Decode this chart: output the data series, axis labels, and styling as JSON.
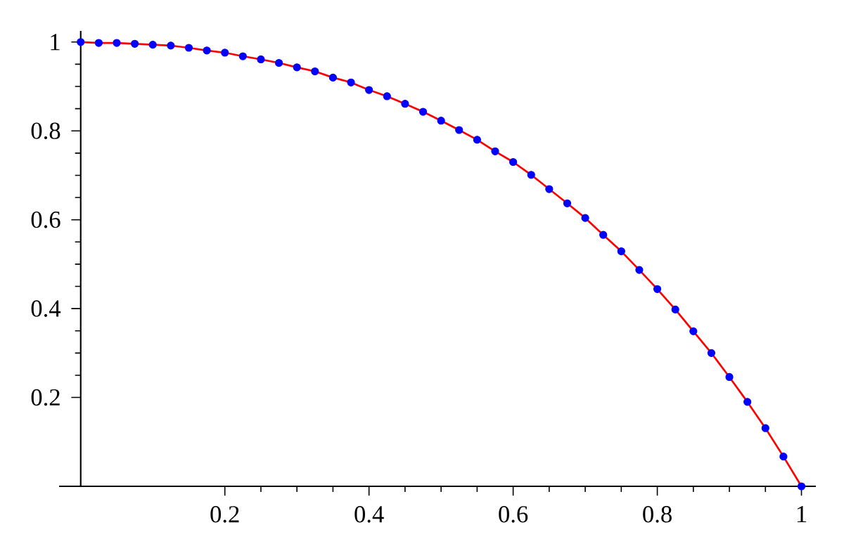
{
  "chart_data": {
    "type": "line",
    "x": [
      0,
      0.025,
      0.05,
      0.075,
      0.1,
      0.125,
      0.15,
      0.175,
      0.2,
      0.225,
      0.25,
      0.275,
      0.3,
      0.325,
      0.35,
      0.375,
      0.4,
      0.425,
      0.45,
      0.475,
      0.5,
      0.525,
      0.55,
      0.575,
      0.6,
      0.625,
      0.65,
      0.675,
      0.7,
      0.725,
      0.75,
      0.775,
      0.8,
      0.825,
      0.85,
      0.875,
      0.9,
      0.925,
      0.95,
      0.975,
      1
    ],
    "series": [
      {
        "color": "#ff0000",
        "marker": "none",
        "line_style": "solid",
        "values": [
          1,
          0.998,
          0.998,
          0.996,
          0.994,
          0.992,
          0.987,
          0.981,
          0.976,
          0.968,
          0.961,
          0.953,
          0.943,
          0.934,
          0.92,
          0.909,
          0.892,
          0.878,
          0.861,
          0.843,
          0.823,
          0.802,
          0.78,
          0.754,
          0.73,
          0.701,
          0.669,
          0.637,
          0.604,
          0.566,
          0.529,
          0.487,
          0.444,
          0.398,
          0.349,
          0.3,
          0.246,
          0.19,
          0.131,
          0.067,
          0
        ]
      },
      {
        "type": "scatter",
        "color": "#0000ff",
        "marker": "circle",
        "values": [
          1,
          0.998,
          0.998,
          0.996,
          0.994,
          0.992,
          0.987,
          0.981,
          0.976,
          0.968,
          0.961,
          0.953,
          0.943,
          0.934,
          0.92,
          0.909,
          0.892,
          0.878,
          0.861,
          0.843,
          0.823,
          0.802,
          0.78,
          0.754,
          0.73,
          0.701,
          0.669,
          0.637,
          0.604,
          0.566,
          0.529,
          0.487,
          0.444,
          0.398,
          0.349,
          0.3,
          0.246,
          0.19,
          0.131,
          0.067,
          0
        ]
      }
    ],
    "xlim": [
      -0.03,
      1.02
    ],
    "ylim": [
      0,
      1.025
    ],
    "xticks": [
      0.2,
      0.4,
      0.6,
      0.8,
      1
    ],
    "yticks": [
      0.2,
      0.4,
      0.6,
      0.8,
      1
    ],
    "grid": false
  }
}
